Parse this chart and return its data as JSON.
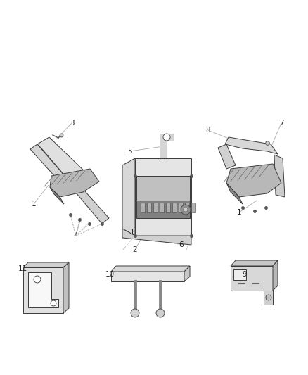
{
  "bg_color": "#ffffff",
  "fig_width": 4.38,
  "fig_height": 5.33,
  "dpi": 100,
  "line_color": "#888888",
  "part_edge": "#3a3a3a",
  "part_light": "#e8e8e8",
  "part_mid": "#c8c8c8",
  "part_dark": "#a0a0a0",
  "part_darker": "#707070",
  "label_fontsize": 7.5,
  "label_color": "#222222",
  "leader_color": "#aaaaaa",
  "leader_lw": 0.6,
  "part_lw": 0.7
}
